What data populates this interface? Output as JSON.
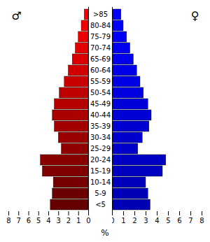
{
  "chart_data": {
    "type": "pyramid",
    "orientation": "horizontal",
    "categories": [
      "<5",
      "5-9",
      "10-14",
      "15-19",
      "20-24",
      "25-29",
      "30-34",
      "35-39",
      "40-44",
      "45-49",
      "50-54",
      "55-59",
      "60-64",
      "65-69",
      "70-74",
      "75-79",
      "80-84",
      ">85"
    ],
    "series": [
      {
        "name": "♂",
        "values": [
          3.8,
          3.6,
          3.5,
          4.6,
          4.8,
          2.7,
          3.0,
          3.4,
          3.6,
          3.4,
          2.9,
          2.4,
          2.0,
          1.6,
          1.3,
          1.0,
          0.7,
          0.4
        ],
        "colors": [
          "#640000",
          "#6d0000",
          "#760000",
          "#7f0000",
          "#880000",
          "#910000",
          "#9a0000",
          "#a30000",
          "#ac0000",
          "#b60000",
          "#bf0000",
          "#c80000",
          "#d10000",
          "#da0000",
          "#e30000",
          "#ec0000",
          "#f50000",
          "#ff0000"
        ]
      },
      {
        "name": "♀",
        "values": [
          3.4,
          3.2,
          3.0,
          4.5,
          4.8,
          2.3,
          2.7,
          3.3,
          3.5,
          3.2,
          2.8,
          2.5,
          2.2,
          1.9,
          1.6,
          1.3,
          1.0,
          0.8
        ],
        "colors": [
          "#0000b4",
          "#0000b8",
          "#0000bc",
          "#0000c1",
          "#0000c5",
          "#0000ca",
          "#0000ce",
          "#0000d2",
          "#0000d7",
          "#0000db",
          "#0000e0",
          "#0000e4",
          "#0000e8",
          "#0000ed",
          "#0000f1",
          "#0000f6",
          "#0000fa",
          "#0000ff"
        ]
      }
    ],
    "xlabel": "%",
    "xlim": [
      0,
      8
    ],
    "xticks": [
      0,
      1,
      2,
      3,
      4,
      5,
      6,
      7,
      8
    ]
  }
}
